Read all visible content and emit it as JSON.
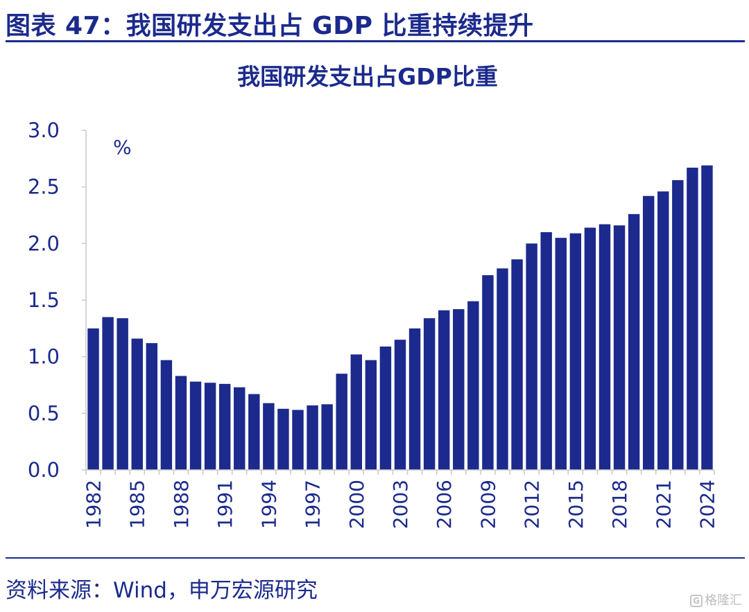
{
  "header": {
    "figure_title": "图表 47：我国研发支出占 GDP 比重持续提升"
  },
  "chart_data": {
    "type": "bar",
    "title": "我国研发支出占GDP比重",
    "unit_label": "%",
    "ylabel": "",
    "xlabel": "",
    "ylim": [
      0,
      3.0
    ],
    "yticks": [
      "0.0",
      "0.5",
      "1.0",
      "1.5",
      "2.0",
      "2.5",
      "3.0"
    ],
    "grid": false,
    "categories": [
      "1982",
      "1983",
      "1984",
      "1985",
      "1986",
      "1987",
      "1988",
      "1989",
      "1990",
      "1991",
      "1992",
      "1993",
      "1994",
      "1995",
      "1996",
      "1997",
      "1998",
      "1999",
      "2000",
      "2001",
      "2002",
      "2003",
      "2004",
      "2005",
      "2006",
      "2007",
      "2008",
      "2009",
      "2010",
      "2011",
      "2012",
      "2013",
      "2014",
      "2015",
      "2016",
      "2017",
      "2018",
      "2019",
      "2020",
      "2021",
      "2022",
      "2023",
      "2024"
    ],
    "values": [
      1.25,
      1.35,
      1.34,
      1.16,
      1.12,
      0.97,
      0.83,
      0.78,
      0.77,
      0.76,
      0.73,
      0.67,
      0.59,
      0.54,
      0.53,
      0.57,
      0.58,
      0.85,
      1.02,
      0.97,
      1.09,
      1.15,
      1.25,
      1.34,
      1.41,
      1.42,
      1.49,
      1.72,
      1.78,
      1.86,
      2.0,
      2.1,
      2.05,
      2.09,
      2.14,
      2.17,
      2.16,
      2.26,
      2.42,
      2.46,
      2.56,
      2.67,
      2.69
    ],
    "xtick_labels": [
      "1982",
      "1985",
      "1988",
      "1991",
      "1994",
      "1997",
      "2000",
      "2003",
      "2006",
      "2009",
      "2012",
      "2015",
      "2018",
      "2021",
      "2024"
    ],
    "bar_color": "#1b2a8c"
  },
  "footer": {
    "source": "资料来源：Wind，申万宏源研究"
  },
  "watermark": {
    "icon": "G",
    "text": "格隆汇"
  }
}
